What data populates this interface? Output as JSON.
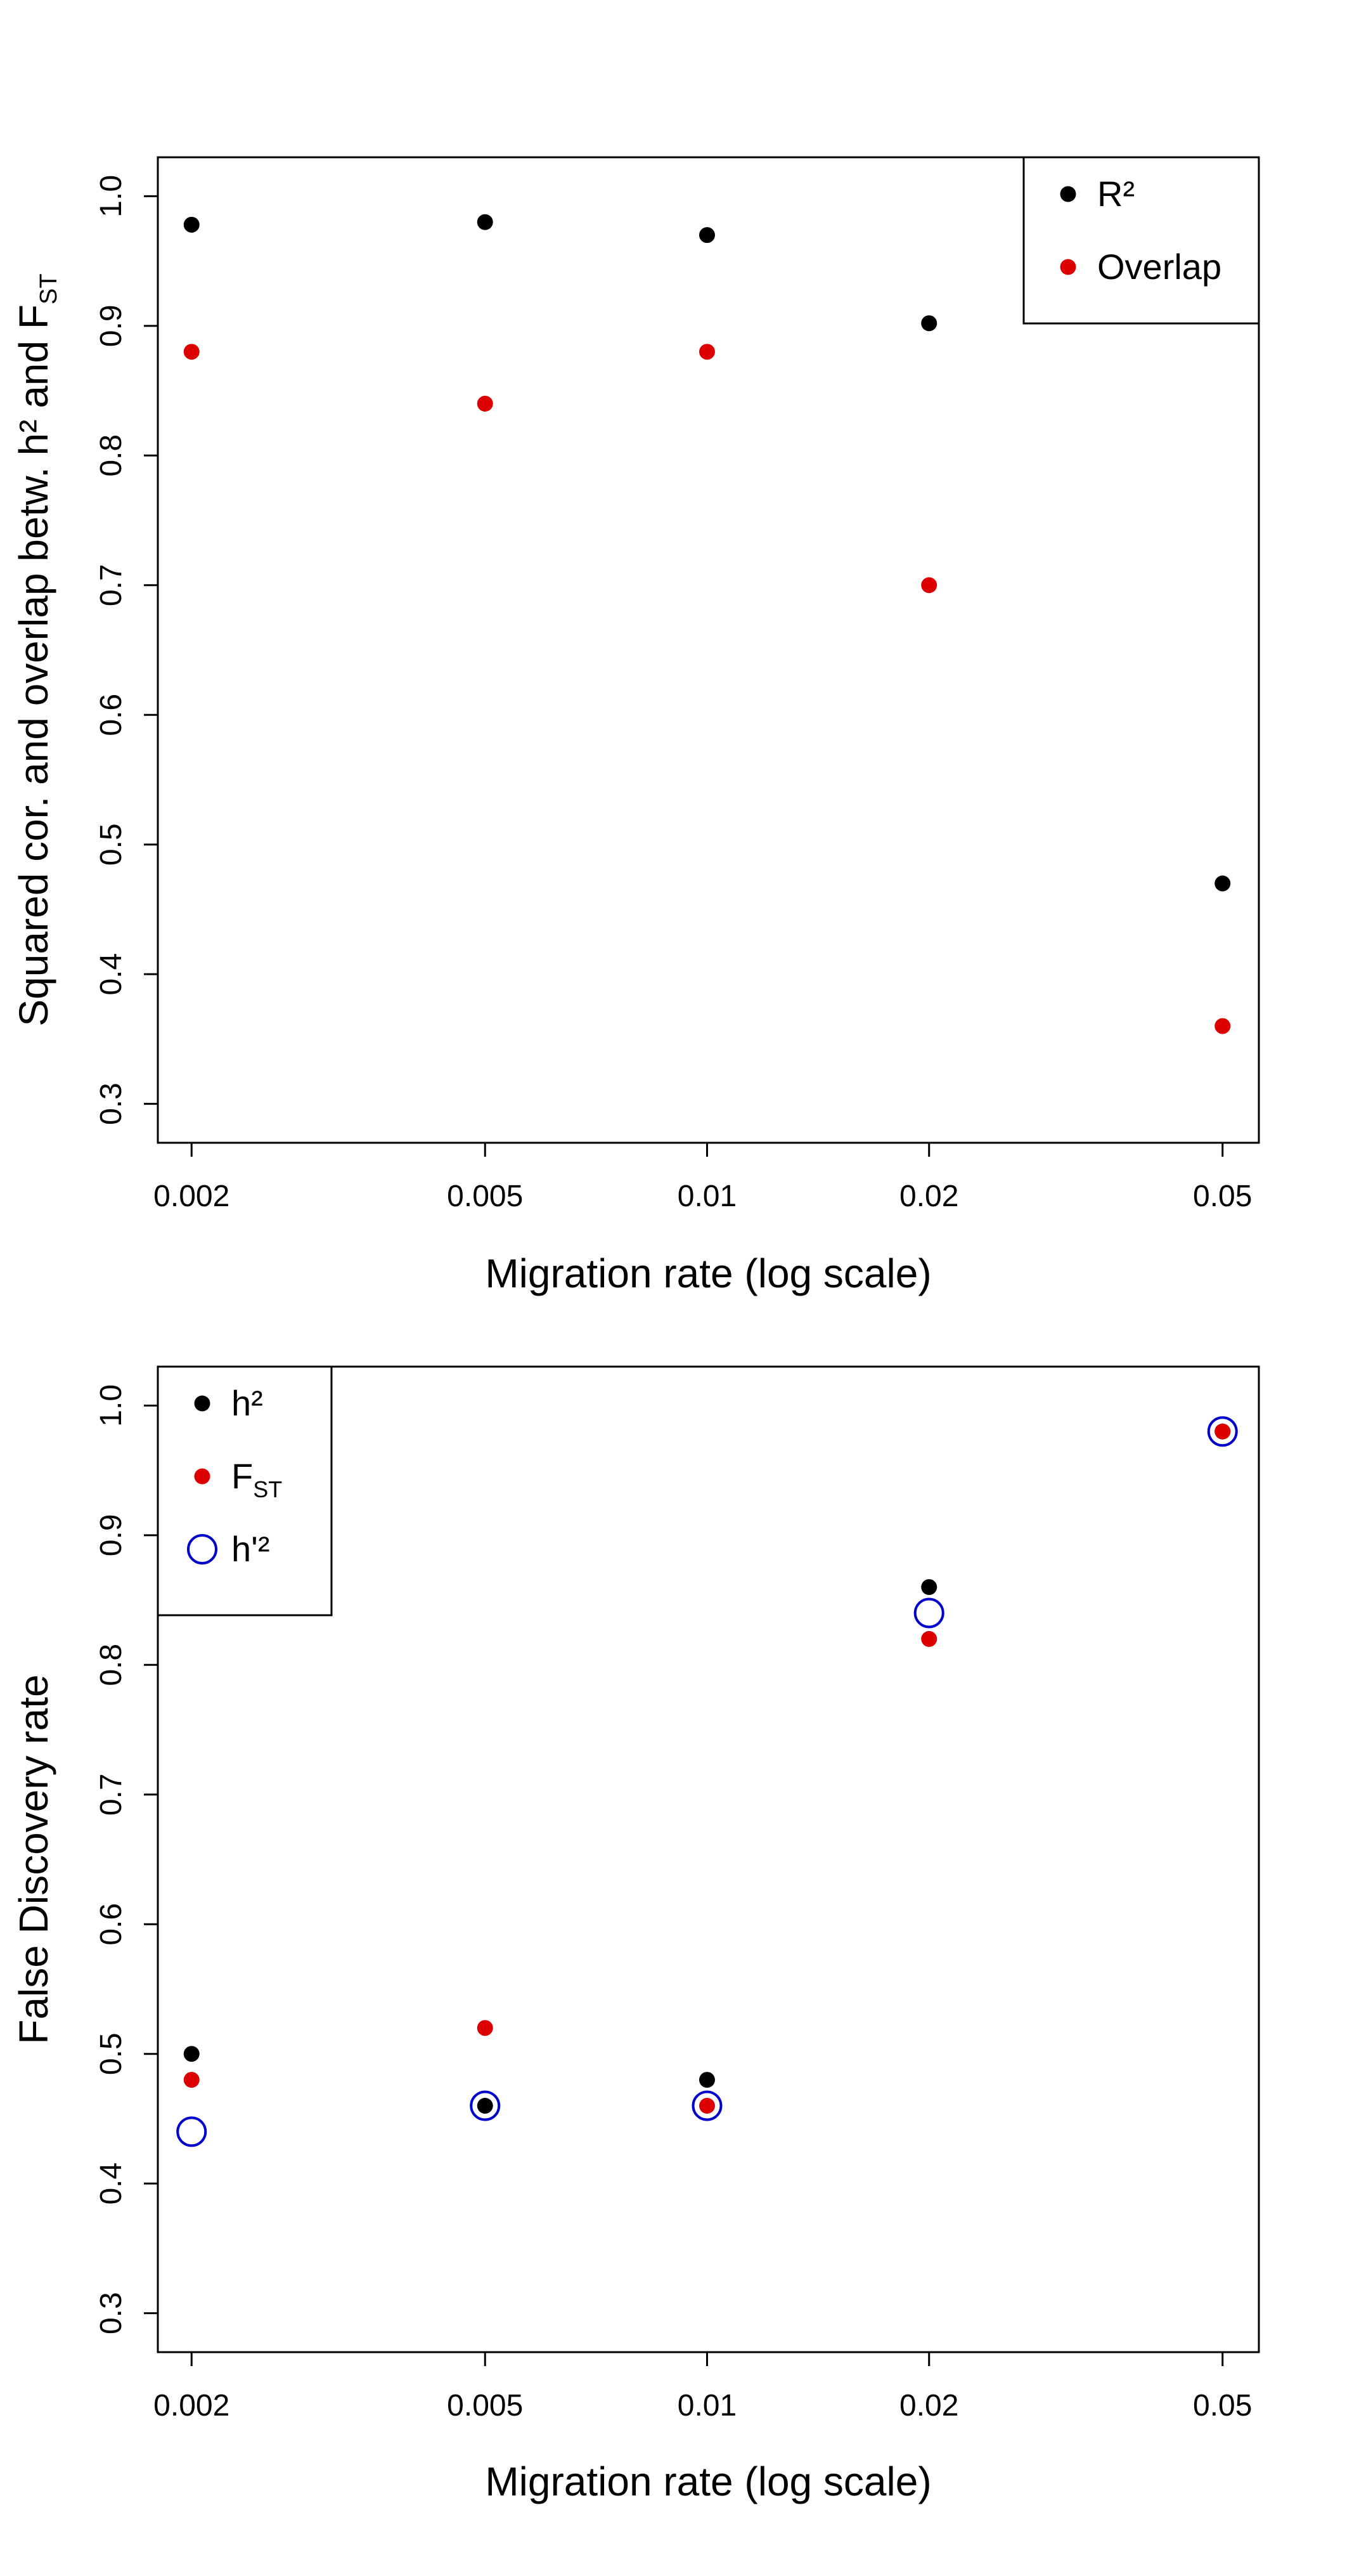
{
  "colors": {
    "black": "#000000",
    "red": "#dd0000",
    "blue": "#0000cc"
  },
  "chart_data": [
    {
      "type": "scatter",
      "xscale": "log",
      "x_ticks": [
        0.002,
        0.005,
        0.01,
        0.02,
        0.05
      ],
      "x_tick_labels": [
        "0.002",
        "0.005",
        "0.01",
        "0.02",
        "0.05"
      ],
      "xlim": [
        0.0018,
        0.056
      ],
      "ylim": [
        0.27,
        1.03
      ],
      "y_ticks": [
        0.3,
        0.4,
        0.5,
        0.6,
        0.7,
        0.8,
        0.9,
        1.0
      ],
      "y_tick_labels": [
        "0.3",
        "0.4",
        "0.5",
        "0.6",
        "0.7",
        "0.8",
        "0.9",
        "1.0"
      ],
      "xlabel": "Migration rate (log scale)",
      "ylabel": {
        "main": "Squared cor. and overlap betw. h² and F",
        "sub": "ST"
      },
      "legend": {
        "placement": "top-right"
      },
      "series": [
        {
          "name": "R²",
          "marker": "dot",
          "color": "#000000",
          "x": [
            0.002,
            0.005,
            0.01,
            0.02,
            0.05
          ],
          "y": [
            0.978,
            0.98,
            0.97,
            0.902,
            0.47
          ]
        },
        {
          "name": "Overlap",
          "marker": "dot",
          "color": "#dd0000",
          "x": [
            0.002,
            0.005,
            0.01,
            0.02,
            0.05
          ],
          "y": [
            0.88,
            0.84,
            0.88,
            0.7,
            0.36
          ]
        }
      ]
    },
    {
      "type": "scatter",
      "xscale": "log",
      "x_ticks": [
        0.002,
        0.005,
        0.01,
        0.02,
        0.05
      ],
      "x_tick_labels": [
        "0.002",
        "0.005",
        "0.01",
        "0.02",
        "0.05"
      ],
      "xlim": [
        0.0018,
        0.056
      ],
      "ylim": [
        0.27,
        1.03
      ],
      "y_ticks": [
        0.3,
        0.4,
        0.5,
        0.6,
        0.7,
        0.8,
        0.9,
        1.0
      ],
      "y_tick_labels": [
        "0.3",
        "0.4",
        "0.5",
        "0.6",
        "0.7",
        "0.8",
        "0.9",
        "1.0"
      ],
      "xlabel": "Migration rate (log scale)",
      "ylabel": {
        "main": "False Discovery rate",
        "sub": ""
      },
      "legend": {
        "placement": "top-left"
      },
      "series": [
        {
          "name": "h²",
          "marker": "dot",
          "color": "#000000",
          "x": [
            0.002,
            0.005,
            0.01,
            0.02,
            0.05
          ],
          "y": [
            0.5,
            0.46,
            0.48,
            0.86,
            0.98
          ]
        },
        {
          "name": "F",
          "name_sub": "ST",
          "marker": "dot",
          "color": "#dd0000",
          "x": [
            0.002,
            0.005,
            0.01,
            0.02,
            0.05
          ],
          "y": [
            0.48,
            0.52,
            0.46,
            0.82,
            0.98
          ]
        },
        {
          "name": "h'²",
          "marker": "circle",
          "color": "#0000cc",
          "x": [
            0.002,
            0.005,
            0.01,
            0.02,
            0.05
          ],
          "y": [
            0.44,
            0.46,
            0.46,
            0.84,
            0.98
          ]
        }
      ]
    }
  ]
}
